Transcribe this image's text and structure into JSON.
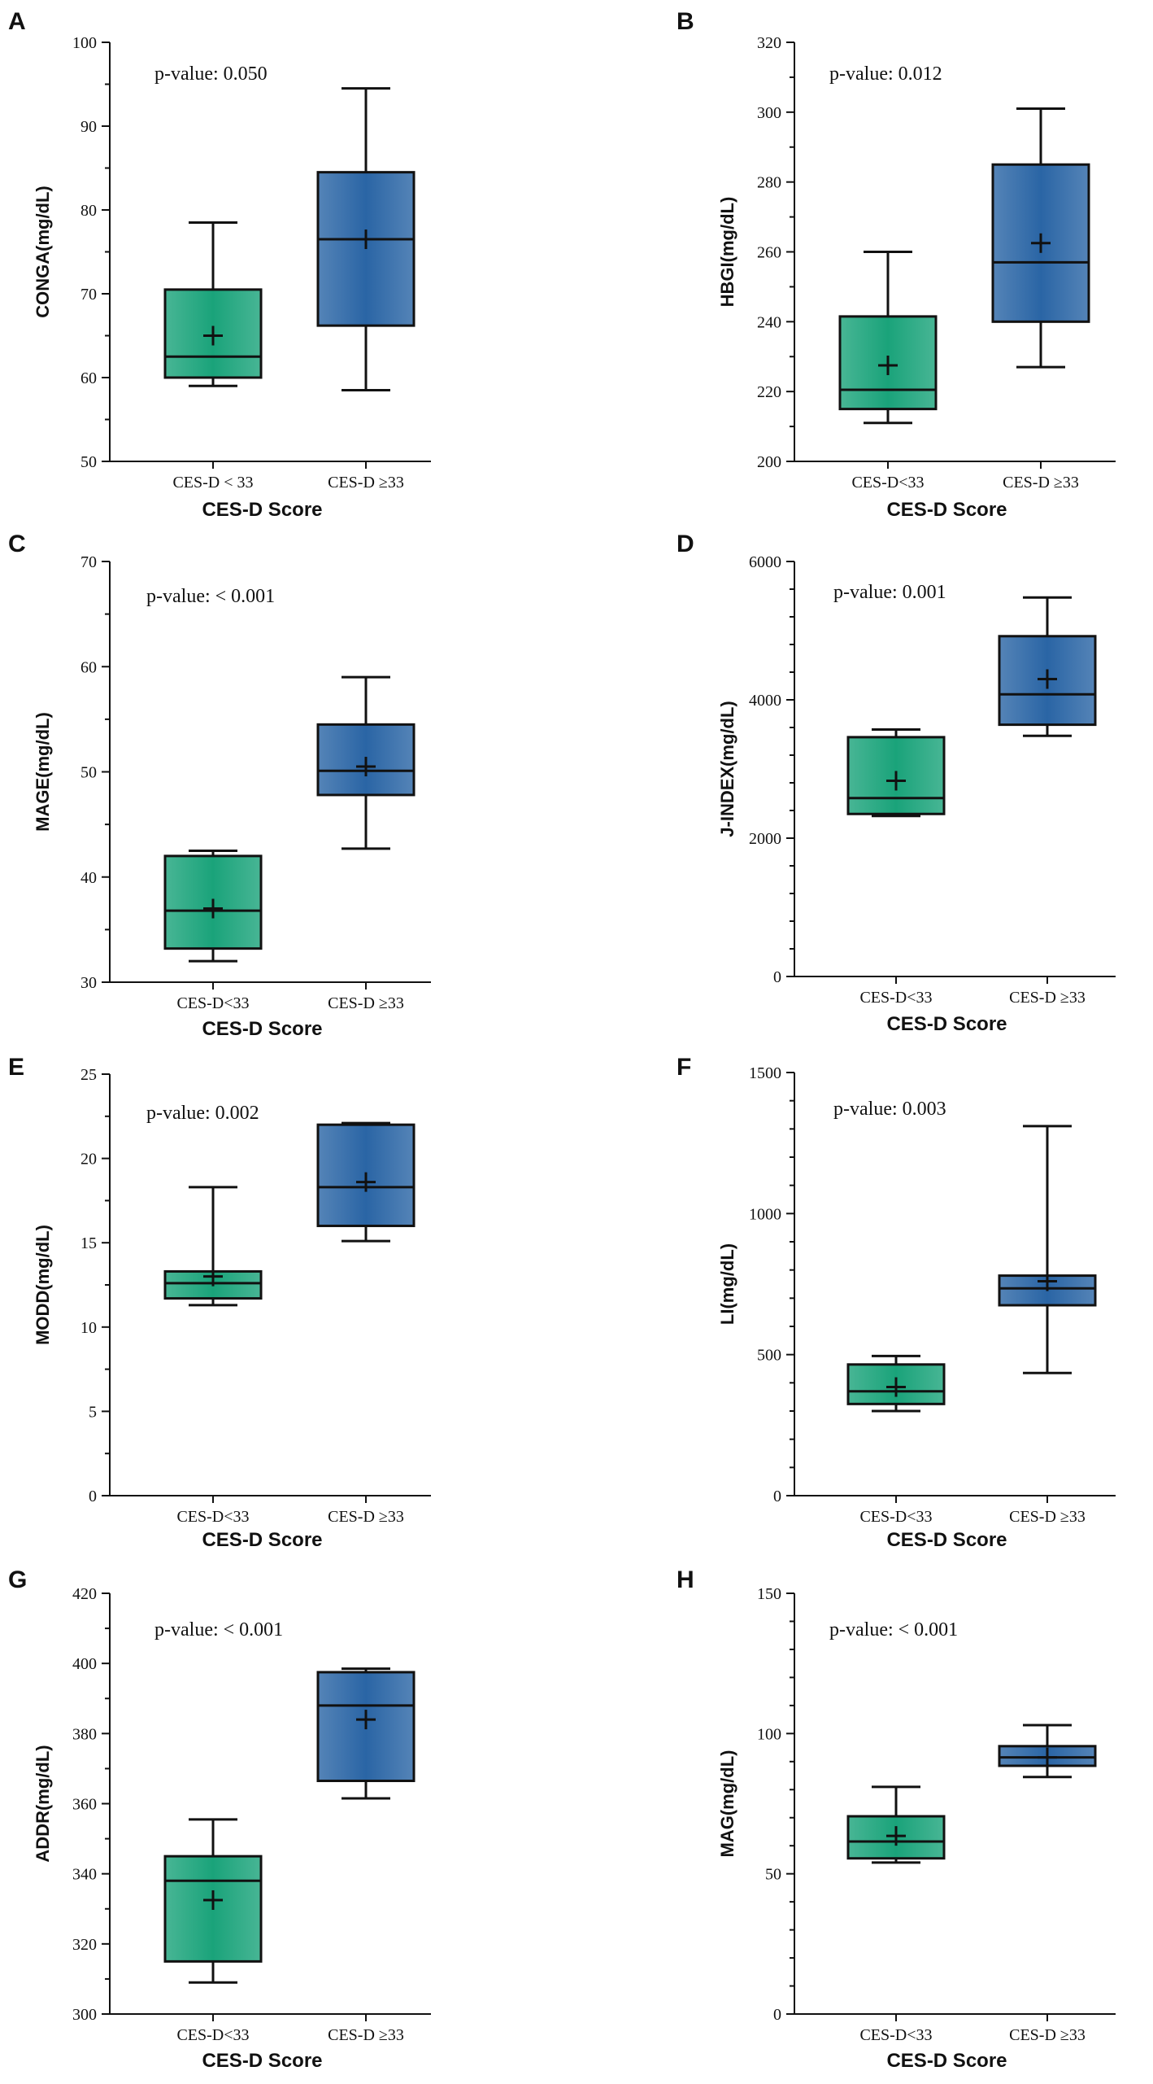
{
  "colors": {
    "group_low": "#1aa37a",
    "group_high": "#2a65a5",
    "axis": "#111111"
  },
  "chart_data": [
    {
      "type": "box",
      "panel": "A",
      "title": "",
      "ylabel": "CONGA(mg/dL)",
      "xlabel": "CES-D Score",
      "ylim": [
        50,
        100
      ],
      "yticks": [
        50,
        60,
        70,
        80,
        90,
        100
      ],
      "ytick_labels": [
        "50",
        "60",
        "70",
        "80",
        "90",
        "100"
      ],
      "annotation": "p-value: 0.050",
      "categories": [
        "CES-D < 33",
        "CES-D ≥33"
      ],
      "boxes": [
        {
          "min": 59,
          "q1": 60,
          "median": 62.5,
          "q3": 70.5,
          "max": 78.5,
          "mean": 65
        },
        {
          "min": 58.5,
          "q1": 66.2,
          "median": 76.5,
          "q3": 84.5,
          "max": 94.5,
          "mean": 76.5
        }
      ]
    },
    {
      "type": "box",
      "panel": "B",
      "title": "",
      "ylabel": "HBGI(mg/dL)",
      "xlabel": "CES-D Score",
      "ylim": [
        200,
        320
      ],
      "yticks": [
        200,
        220,
        240,
        260,
        280,
        300,
        320
      ],
      "ytick_labels": [
        "200",
        "220",
        "240",
        "260",
        "280",
        "300",
        "320"
      ],
      "annotation": "p-value: 0.012",
      "categories": [
        "CES-D<33",
        "CES-D ≥33"
      ],
      "boxes": [
        {
          "min": 211,
          "q1": 215,
          "median": 220.5,
          "q3": 241.5,
          "max": 260,
          "mean": 227.5
        },
        {
          "min": 227,
          "q1": 240,
          "median": 257,
          "q3": 285,
          "max": 301,
          "mean": 262.5
        }
      ]
    },
    {
      "type": "box",
      "panel": "C",
      "title": "",
      "ylabel": "MAGE(mg/dL)",
      "xlabel": "CES-D Score",
      "ylim": [
        30,
        70
      ],
      "yticks": [
        30,
        40,
        50,
        60,
        70
      ],
      "ytick_labels": [
        "30",
        "40",
        "50",
        "60",
        "70"
      ],
      "annotation": "p-value: < 0.001",
      "categories": [
        "CES-D<33",
        "CES-D ≥33"
      ],
      "boxes": [
        {
          "min": 32,
          "q1": 33.2,
          "median": 36.8,
          "q3": 42,
          "max": 42.5,
          "mean": 37
        },
        {
          "min": 42.7,
          "q1": 47.8,
          "median": 50.1,
          "q3": 54.5,
          "max": 59,
          "mean": 50.5
        }
      ]
    },
    {
      "type": "box",
      "panel": "D",
      "title": "",
      "ylabel": "J-INDEX(mg/dL)",
      "xlabel": "CES-D Score",
      "ylim": [
        0,
        6000
      ],
      "yticks": [
        0,
        2000,
        4000,
        6000
      ],
      "ytick_labels": [
        "0",
        "2000",
        "4000",
        "6000"
      ],
      "annotation": "p-value: 0.001",
      "categories": [
        "CES-D<33",
        "CES-D ≥33"
      ],
      "boxes": [
        {
          "min": 2320,
          "q1": 2350,
          "median": 2580,
          "q3": 3460,
          "max": 3570,
          "mean": 2830
        },
        {
          "min": 3480,
          "q1": 3640,
          "median": 4080,
          "q3": 4920,
          "max": 5480,
          "mean": 4300
        }
      ]
    },
    {
      "type": "box",
      "panel": "E",
      "title": "",
      "ylabel": "MODD(mg/dL)",
      "xlabel": "CES-D Score",
      "ylim": [
        0,
        25
      ],
      "yticks": [
        0,
        5,
        10,
        15,
        20,
        25
      ],
      "ytick_labels": [
        "0",
        "5",
        "10",
        "15",
        "20",
        "25"
      ],
      "annotation": "p-value: 0.002",
      "categories": [
        "CES-D<33",
        "CES-D ≥33"
      ],
      "boxes": [
        {
          "min": 11.3,
          "q1": 11.7,
          "median": 12.6,
          "q3": 13.3,
          "max": 18.3,
          "mean": 13
        },
        {
          "min": 15.1,
          "q1": 16,
          "median": 18.3,
          "q3": 22,
          "max": 22.1,
          "mean": 18.6
        }
      ]
    },
    {
      "type": "box",
      "panel": "F",
      "title": "",
      "ylabel": "LI(mg/dL)",
      "xlabel": "CES-D Score",
      "ylim": [
        0,
        1500
      ],
      "yticks": [
        0,
        500,
        1000,
        1500
      ],
      "ytick_labels": [
        "0",
        "500",
        "1000",
        "1500"
      ],
      "annotation": "p-value: 0.003",
      "categories": [
        "CES-D<33",
        "CES-D ≥33"
      ],
      "boxes": [
        {
          "min": 300,
          "q1": 325,
          "median": 370,
          "q3": 465,
          "max": 495,
          "mean": 385
        },
        {
          "min": 435,
          "q1": 675,
          "median": 735,
          "q3": 780,
          "max": 1310,
          "mean": 760
        }
      ]
    },
    {
      "type": "box",
      "panel": "G",
      "title": "",
      "ylabel": "ADDR(mg/dL)",
      "xlabel": "CES-D Score",
      "ylim": [
        300,
        420
      ],
      "yticks": [
        300,
        320,
        340,
        360,
        380,
        400,
        420
      ],
      "ytick_labels": [
        "300",
        "320",
        "340",
        "360",
        "380",
        "400",
        "420"
      ],
      "annotation": "p-value: < 0.001",
      "categories": [
        "CES-D<33",
        "CES-D ≥33"
      ],
      "boxes": [
        {
          "min": 309,
          "q1": 315,
          "median": 338,
          "q3": 345,
          "max": 355.5,
          "mean": 332.5
        },
        {
          "min": 361.5,
          "q1": 366.5,
          "median": 388,
          "q3": 397.5,
          "max": 398.5,
          "mean": 384
        }
      ]
    },
    {
      "type": "box",
      "panel": "H",
      "title": "",
      "ylabel": "MAG(mg/dL)",
      "xlabel": "CES-D Score",
      "ylim": [
        0,
        150
      ],
      "yticks": [
        0,
        50,
        100,
        150
      ],
      "ytick_labels": [
        "0",
        "50",
        "100",
        "150"
      ],
      "annotation": "p-value: < 0.001",
      "categories": [
        "CES-D<33",
        "CES-D ≥33"
      ],
      "boxes": [
        {
          "min": 54,
          "q1": 55.5,
          "median": 61.5,
          "q3": 70.5,
          "max": 81,
          "mean": 63.5
        },
        {
          "min": 84.5,
          "q1": 88.5,
          "median": 91.5,
          "q3": 95.5,
          "max": 103,
          "mean": 91.5
        }
      ]
    }
  ]
}
